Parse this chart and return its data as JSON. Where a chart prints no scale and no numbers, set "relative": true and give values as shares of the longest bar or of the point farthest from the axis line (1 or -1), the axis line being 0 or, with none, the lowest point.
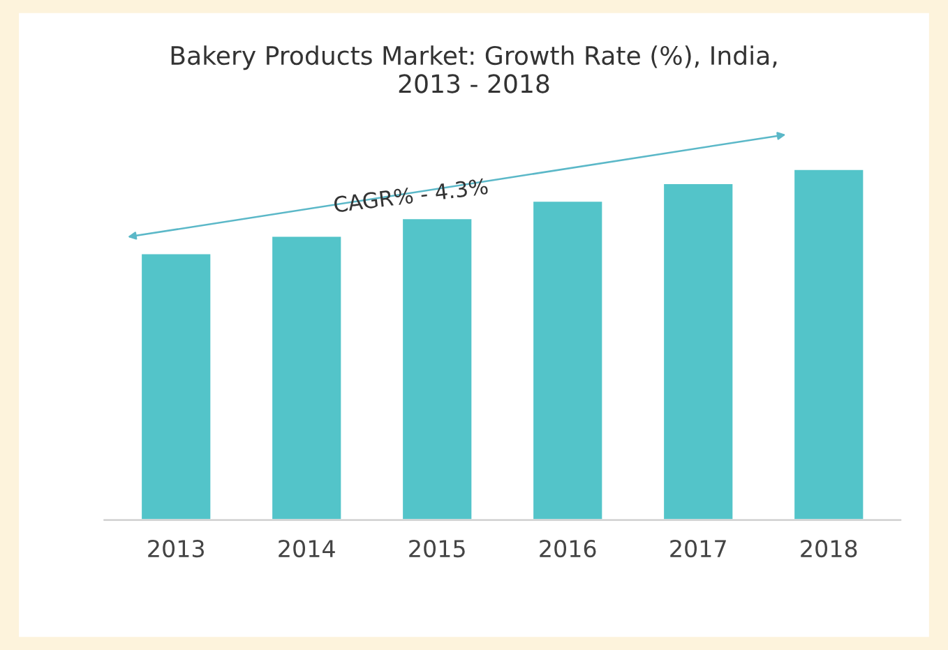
{
  "chart_data": {
    "type": "bar",
    "title": "Bakery Products Market: Growth Rate (%), India,\n2013 - 2018",
    "categories": [
      "2013",
      "2014",
      "2015",
      "2016",
      "2017",
      "2018"
    ],
    "values": [
      0.76,
      0.81,
      0.86,
      0.91,
      0.96,
      1
    ],
    "color": "#53c4c9",
    "relative": true,
    "grid": false,
    "legend": false,
    "annotations": [
      "CAGR% - 4.3%"
    ]
  }
}
